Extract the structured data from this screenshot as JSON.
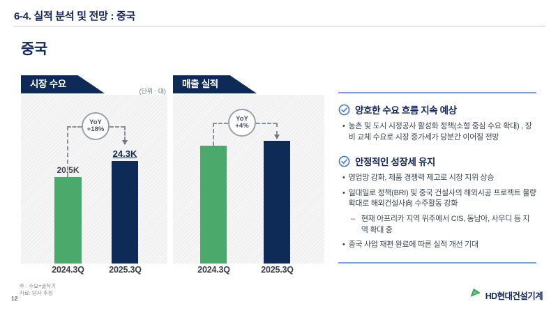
{
  "slide": {
    "title": "6-4. 실적 분석 및 전망 : 중국",
    "subtitle": "중국",
    "page_number": "12",
    "footnote_1": "주 : 수요=굴착기",
    "footnote_2": "자료: 당사 추정",
    "logo_text": "HD현대건설기계"
  },
  "colors": {
    "navy": "#0e2a57",
    "green": "#4aa96b",
    "accent_blue": "#4a7cd6",
    "divider_blue": "#7b9fe0",
    "logo_green": "#2fa84f"
  },
  "chart_data": [
    {
      "type": "bar",
      "title": "시장 수요",
      "unit_label": "(단위 : 대)",
      "categories": [
        "2024.3Q",
        "2025.3Q"
      ],
      "values": [
        20.5,
        24.3
      ],
      "value_labels": [
        "20.5K",
        "24.3K"
      ],
      "yoy": {
        "label": "YoY",
        "value": "+18%"
      },
      "bar_colors": [
        "#4aa96b",
        "#0e2a57"
      ],
      "ylim": [
        0,
        40
      ],
      "xlabel": "",
      "ylabel": "",
      "grid": false,
      "legend": "none"
    },
    {
      "type": "bar",
      "title": "매출 실적",
      "unit_label": "",
      "categories": [
        "2024.3Q",
        "2025.3Q"
      ],
      "values": [
        100,
        104
      ],
      "value_labels": [
        "",
        ""
      ],
      "yoy": {
        "label": "YoY",
        "value": "+4%"
      },
      "bar_colors": [
        "#4aa96b",
        "#0e2a57"
      ],
      "ylim": [
        0,
        143
      ],
      "xlabel": "",
      "ylabel": "",
      "grid": false,
      "legend": "none",
      "note": "no absolute values labeled; bars scaled to YoY +4%"
    }
  ],
  "insights": {
    "sections": [
      {
        "heading": "양호한 수요 흐름 지속 예상",
        "bullets": [
          {
            "level": 1,
            "text": "농촌 및 도시 시정공사 활성화 정책(소형 중심 수요 확대) , 장비 교체 수요로 시장 증가세가 당분간 이어질 전망"
          }
        ]
      },
      {
        "heading": "안정적인 성장세 유지",
        "bullets": [
          {
            "level": 1,
            "text": "영업망 강화, 제품 경쟁력 제고로 시장 지위 상승"
          },
          {
            "level": 1,
            "text": "일대일로 정책(BRI) 및 중국 건설사의 해외시공 프로젝트 물량 확대로 해외건설사向 수주활동 강화"
          },
          {
            "level": 2,
            "text": "현재 아프리카 지역 위주에서 CIS, 동남아, 사우디 등 지역 확대 중"
          },
          {
            "level": 1,
            "text": "중국 사업 재편 완료에 따른 실적 개선 기대"
          }
        ]
      }
    ]
  }
}
